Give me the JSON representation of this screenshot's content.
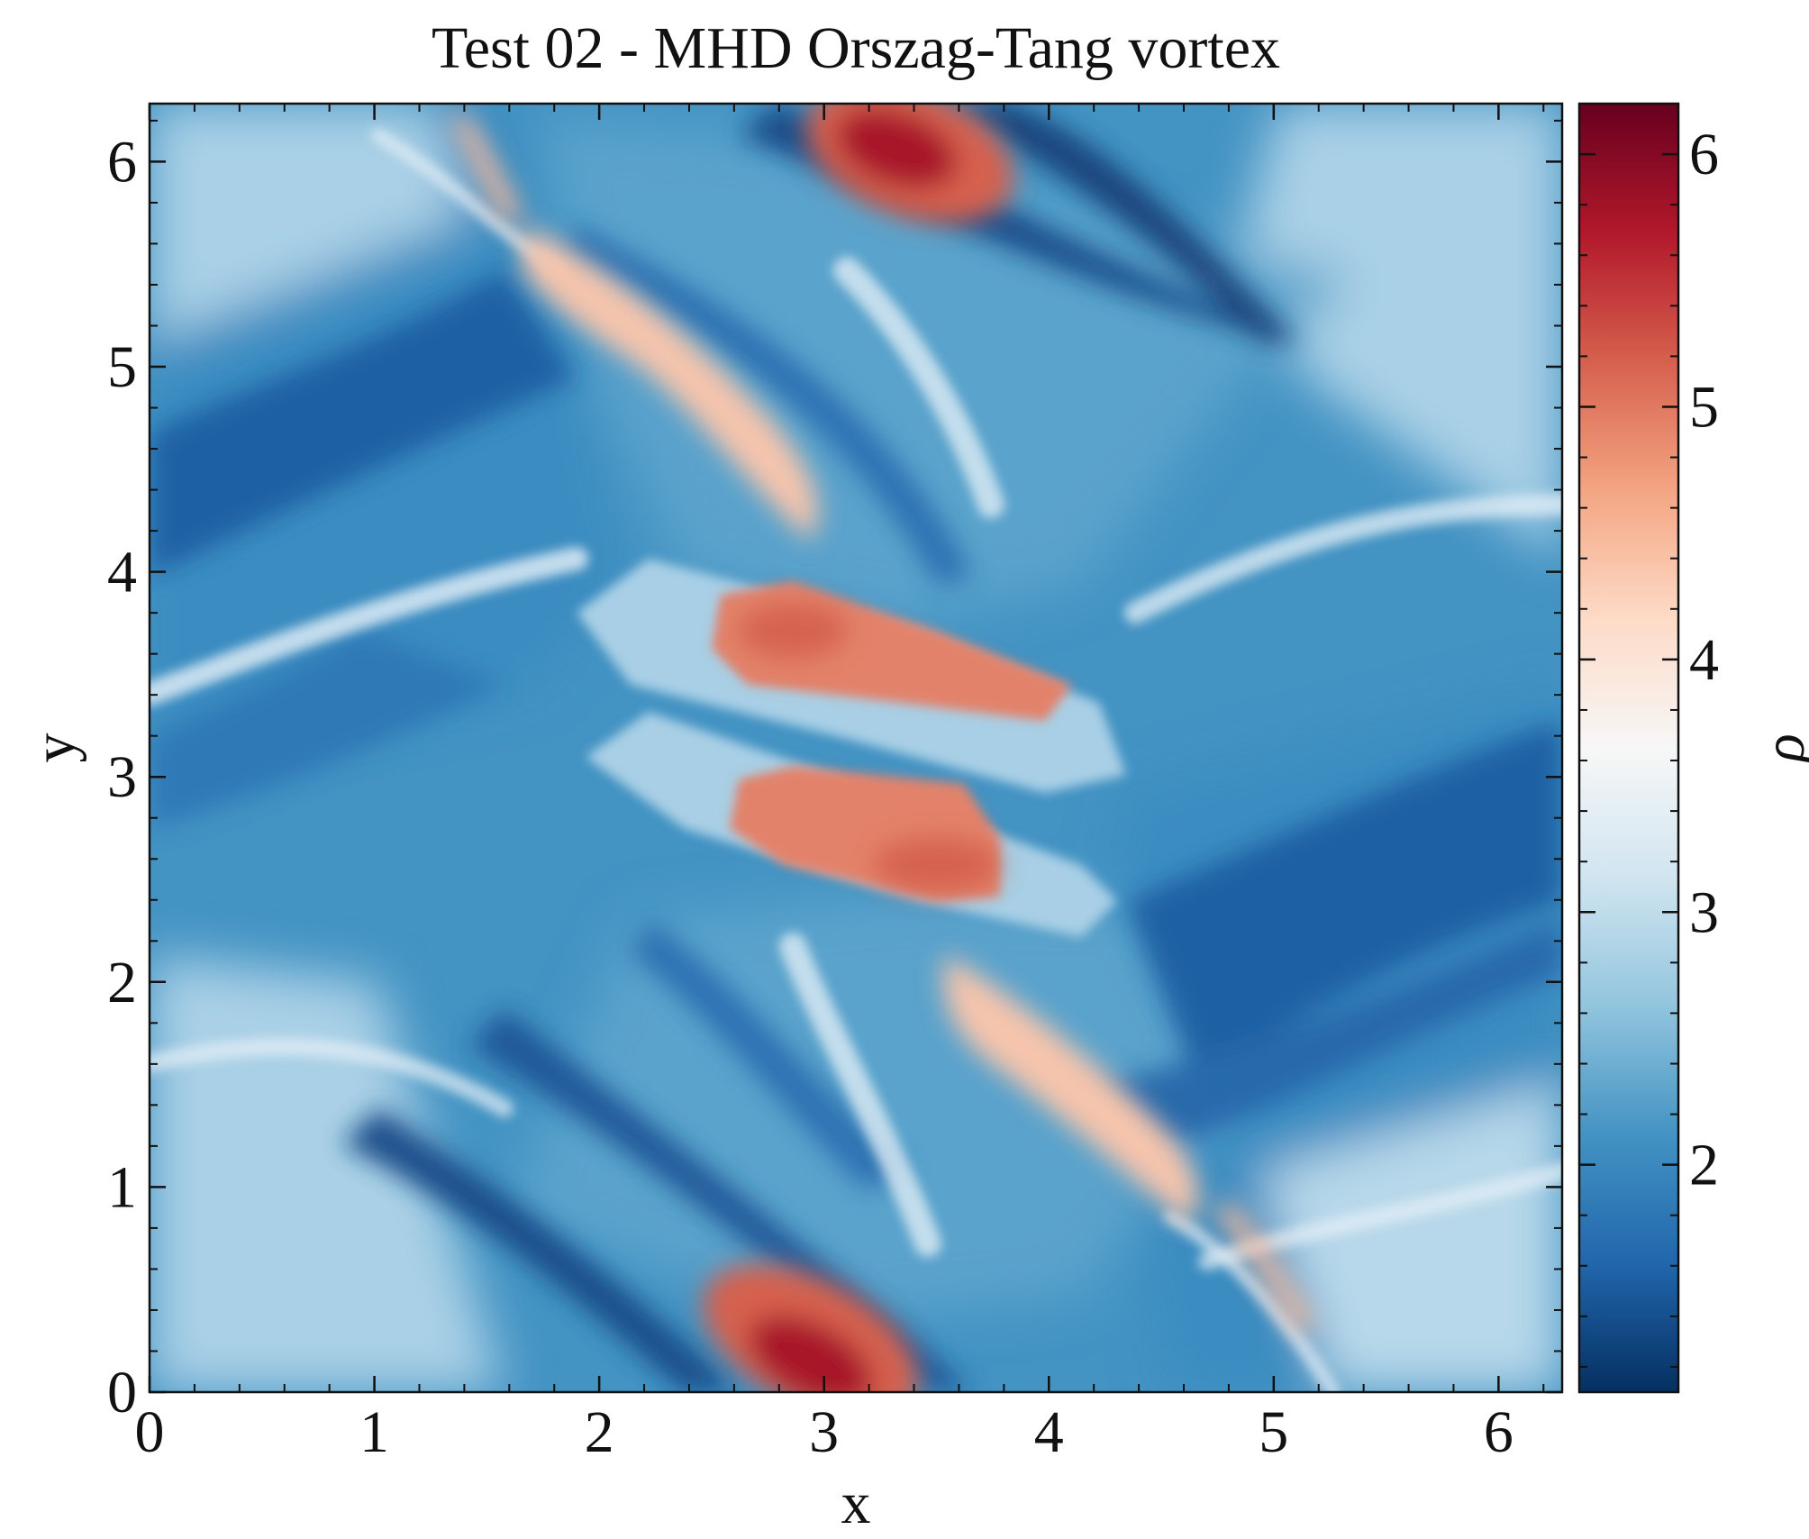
{
  "chart_data": {
    "type": "heatmap",
    "title": "Test 02 - MHD Orszag-Tang vortex",
    "xlabel": "x",
    "ylabel": "y",
    "xlim": [
      0,
      6.283
    ],
    "ylim": [
      0,
      6.283
    ],
    "x_ticks": [
      "0",
      "1",
      "2",
      "3",
      "4",
      "5",
      "6"
    ],
    "y_ticks": [
      "0",
      "1",
      "2",
      "3",
      "4",
      "5",
      "6"
    ],
    "colorbar": {
      "label": "ρ",
      "range": [
        1.1,
        6.2
      ],
      "ticks": [
        "2",
        "3",
        "4",
        "5",
        "6"
      ],
      "colormap": "RdBu_r",
      "colors": [
        "#053061",
        "#2166ac",
        "#4393c3",
        "#92c5de",
        "#d1e5f0",
        "#f7f7f7",
        "#fddbc7",
        "#f4a582",
        "#d6604d",
        "#b2182b",
        "#67001f"
      ]
    },
    "features": [
      {
        "x": 3.2,
        "y": 6.1,
        "rho": 6.2,
        "kind": "density peak"
      },
      {
        "x": 3.0,
        "y": 0.15,
        "rho": 6.1,
        "kind": "density peak"
      },
      {
        "x": 2.8,
        "y": 3.6,
        "rho": 5.3,
        "kind": "shocked band"
      },
      {
        "x": 3.3,
        "y": 2.6,
        "rho": 5.2,
        "kind": "shocked band"
      },
      {
        "x": 1.9,
        "y": 4.8,
        "rho": 4.2,
        "kind": "ridge"
      },
      {
        "x": 4.2,
        "y": 1.3,
        "rho": 4.3,
        "kind": "ridge"
      },
      {
        "x": 0.8,
        "y": 3.6,
        "rho": 1.5,
        "kind": "low-density trough"
      },
      {
        "x": 5.5,
        "y": 2.7,
        "rho": 1.5,
        "kind": "low-density trough"
      }
    ]
  }
}
